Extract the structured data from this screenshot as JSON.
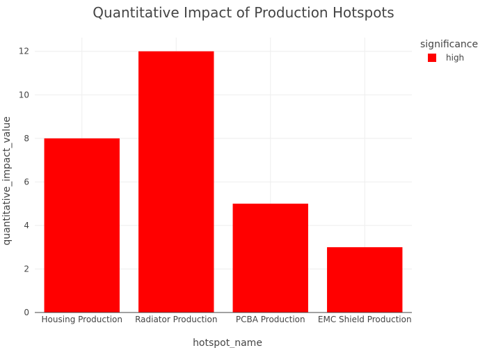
{
  "chart_data": {
    "type": "bar",
    "title": "Quantitative Impact of Production Hotspots",
    "xlabel": "hotspot_name",
    "ylabel": "quantitative_impact_value",
    "categories": [
      "Housing Production",
      "Radiator Production",
      "PCBA Production",
      "EMC Shield Production"
    ],
    "series": [
      {
        "name": "high",
        "values": [
          8,
          12,
          5,
          3
        ],
        "color": "#ff0000"
      }
    ],
    "ylim": [
      0,
      12.63
    ],
    "yticks": [
      0,
      2,
      4,
      6,
      8,
      10,
      12
    ],
    "grid": true,
    "legend": {
      "title": "significance",
      "position": "top-right"
    }
  }
}
